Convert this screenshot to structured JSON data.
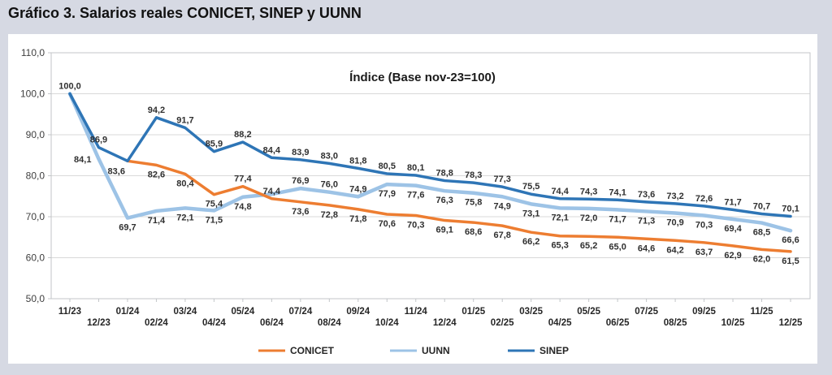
{
  "page": {
    "title": "Gráfico 3. Salarios reales CONICET, SINEP y UUNN"
  },
  "chart_data": {
    "type": "line",
    "title": "Índice (Base nov-23=100)",
    "grid": true,
    "legend_position": "bottom",
    "x_categories": [
      "11/23",
      "12/23",
      "01/24",
      "02/24",
      "03/24",
      "04/24",
      "05/24",
      "06/24",
      "07/24",
      "08/24",
      "09/24",
      "10/24",
      "11/24",
      "12/24",
      "01/25",
      "02/25",
      "03/25",
      "04/25",
      "05/25",
      "06/25",
      "07/25",
      "08/25",
      "09/25",
      "10/25",
      "11/25",
      "12/25"
    ],
    "y_axis": {
      "min": 50,
      "max": 110,
      "step": 10,
      "tick_labels": [
        "110,0",
        "100,0",
        "90,0",
        "80,0",
        "70,0",
        "60,0",
        "50,0"
      ]
    },
    "series": [
      {
        "name": "CONICET",
        "color": "#ED7D31",
        "values": [
          null,
          null,
          83.6,
          82.6,
          80.4,
          75.4,
          77.4,
          74.4,
          73.6,
          72.8,
          71.8,
          70.6,
          70.3,
          69.1,
          68.6,
          67.8,
          66.2,
          65.3,
          65.2,
          65.0,
          64.6,
          64.2,
          63.7,
          62.9,
          62.0,
          61.5
        ],
        "point_labels": [
          null,
          null,
          null,
          "82,6",
          "80,4",
          "75,4",
          "77,4",
          "74,4",
          "73,6",
          "72,8",
          "71,8",
          "70,6",
          "70,3",
          "69,1",
          "68,6",
          "67,8",
          "66,2",
          "65,3",
          "65,2",
          "65,0",
          "64,6",
          "64,2",
          "63,7",
          "62,9",
          "62,0",
          "61,5"
        ]
      },
      {
        "name": "UUNN",
        "color": "#9DC3E6",
        "values": [
          100.0,
          84.1,
          69.7,
          71.4,
          72.1,
          71.5,
          74.8,
          75.5,
          76.9,
          76.0,
          74.9,
          77.9,
          77.6,
          76.3,
          75.8,
          74.9,
          73.1,
          72.1,
          72.0,
          71.7,
          71.3,
          70.9,
          70.3,
          69.4,
          68.5,
          66.6
        ],
        "point_labels": [
          null,
          "84,1",
          "69,7",
          "71,4",
          "72,1",
          "71,5",
          "74,8",
          null,
          "76,9",
          "76,0",
          "74,9",
          "77,9",
          "77,6",
          "76,3",
          "75,8",
          "74,9",
          "73,1",
          "72,1",
          "72,0",
          "71,7",
          "71,3",
          "70,9",
          "70,3",
          "69,4",
          "68,5",
          "66,6"
        ]
      },
      {
        "name": "SINEP",
        "color": "#2E75B6",
        "values": [
          100.0,
          86.9,
          83.6,
          94.2,
          91.7,
          85.9,
          88.2,
          84.4,
          83.9,
          83.0,
          81.8,
          80.5,
          80.1,
          78.8,
          78.3,
          77.3,
          75.5,
          74.4,
          74.3,
          74.1,
          73.6,
          73.2,
          72.6,
          71.7,
          70.7,
          70.1
        ],
        "point_labels": [
          "100,0",
          "86,9",
          "83,6",
          "94,2",
          "91,7",
          "85,9",
          "88,2",
          "84,4",
          "83,9",
          "83,0",
          "81,8",
          "80,5",
          "80,1",
          "78,8",
          "78,3",
          "77,3",
          "75,5",
          "74,4",
          "74,3",
          "74,1",
          "73,6",
          "73,2",
          "72,6",
          "71,7",
          "70,7",
          "70,1"
        ]
      }
    ]
  },
  "colors": {
    "background": "#d6d9e3",
    "panel": "#ffffff",
    "frame": "#c3c6c9",
    "gridline": "#d9d9d9",
    "label_text": "#303030",
    "axis_text": "#404040"
  }
}
